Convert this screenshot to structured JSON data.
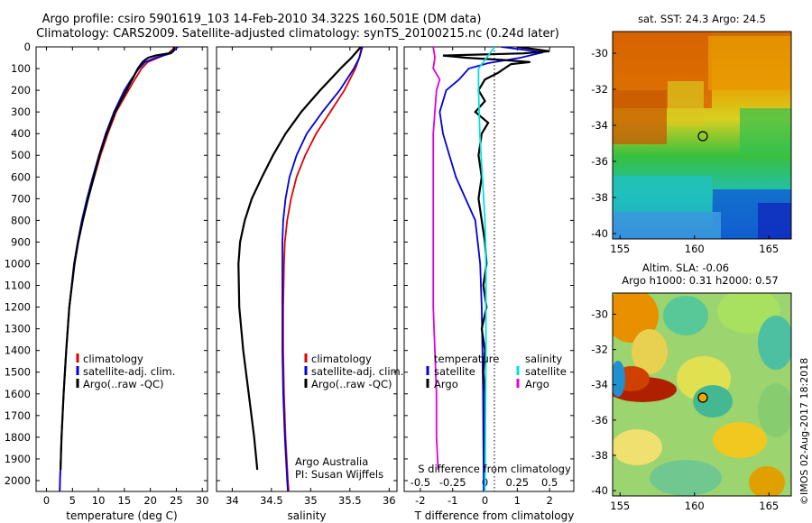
{
  "header": {
    "title_line1": "Argo profile: csiro 5901619_103 14-Feb-2010 34.322S 160.501E (DM data)",
    "title_line2": "Climatology: CARS2009. Satellite-adjusted climatology: synTS_20100215.nc (0.24d later)"
  },
  "colors": {
    "climatology": "#e00000",
    "satellite": "#0000e0",
    "argo": "#000000",
    "sat_T": "#0000e0",
    "sat_S": "#00e0e0",
    "argo_S": "#e000e0"
  },
  "chart_data": [
    {
      "type": "line",
      "panel": "temperature",
      "xlabel": "temperature (deg C)",
      "xlim": [
        -2,
        31
      ],
      "ylim": [
        2050,
        0
      ],
      "xticks": [
        0,
        5,
        10,
        15,
        20,
        25,
        30
      ],
      "yticks": [
        0,
        100,
        200,
        300,
        400,
        500,
        600,
        700,
        800,
        900,
        1000,
        1100,
        1200,
        1300,
        1400,
        1500,
        1600,
        1700,
        1800,
        1900,
        2000
      ],
      "legend": [
        "climatology",
        "satellite-adj. clim.",
        "Argo(..raw -QC)"
      ],
      "series": [
        {
          "name": "climatology",
          "color": "#e00000",
          "depth": [
            0,
            30,
            50,
            70,
            100,
            150,
            200,
            300,
            400,
            500,
            600,
            700,
            800,
            900,
            1000,
            1200,
            1400,
            1600,
            1800,
            2000,
            2050
          ],
          "values": [
            24.8,
            23.5,
            21.5,
            19.5,
            18.3,
            17.0,
            15.8,
            13.4,
            11.8,
            10.4,
            9.2,
            8.0,
            7.0,
            6.1,
            5.4,
            4.4,
            3.8,
            3.3,
            2.9,
            2.6,
            2.55
          ]
        },
        {
          "name": "satellite-adj. clim.",
          "color": "#0000e0",
          "depth": [
            0,
            30,
            50,
            70,
            100,
            150,
            200,
            300,
            400,
            500,
            600,
            700,
            800,
            900,
            1000,
            1200,
            1400,
            1600,
            1800,
            2000,
            2050
          ],
          "values": [
            25.3,
            24.0,
            21.0,
            19.0,
            17.8,
            16.3,
            15.0,
            13.0,
            11.4,
            10.1,
            8.9,
            7.8,
            6.8,
            6.0,
            5.3,
            4.4,
            3.8,
            3.3,
            2.9,
            2.6,
            2.55
          ]
        },
        {
          "name": "Argo(..raw -QC)",
          "color": "#000000",
          "depth": [
            0,
            20,
            30,
            40,
            50,
            60,
            70,
            100,
            150,
            200,
            300,
            400,
            500,
            600,
            700,
            800,
            900,
            1000,
            1200,
            1400,
            1600,
            1800,
            1950
          ],
          "values": [
            24.6,
            24.4,
            23.5,
            21.0,
            19.6,
            19.0,
            18.5,
            17.6,
            16.5,
            15.4,
            13.2,
            11.6,
            10.2,
            9.1,
            8.0,
            7.0,
            6.1,
            5.4,
            4.4,
            3.8,
            3.3,
            2.9,
            2.7
          ]
        }
      ]
    },
    {
      "type": "line",
      "panel": "salinity",
      "xlabel": "salinity",
      "xlim": [
        33.8,
        36.1
      ],
      "ylim": [
        2050,
        0
      ],
      "xticks": [
        34,
        34.5,
        35,
        35.5,
        36
      ],
      "legend": [
        "climatology",
        "satellite-adj. clim.",
        "Argo(..raw -QC)"
      ],
      "credit": [
        "Argo Australia",
        "PI: Susan Wijffels"
      ],
      "series": [
        {
          "name": "climatology",
          "color": "#e00000",
          "depth": [
            0,
            50,
            100,
            200,
            300,
            400,
            500,
            600,
            700,
            800,
            900,
            1000,
            1200,
            1400,
            1600,
            1800,
            2000,
            2050
          ],
          "values": [
            35.65,
            35.62,
            35.57,
            35.43,
            35.25,
            35.07,
            34.93,
            34.82,
            34.75,
            34.7,
            34.67,
            34.66,
            34.65,
            34.65,
            34.66,
            34.68,
            34.71,
            34.72
          ]
        },
        {
          "name": "satellite-adj. clim.",
          "color": "#0000e0",
          "depth": [
            0,
            50,
            100,
            200,
            300,
            400,
            500,
            600,
            700,
            800,
            900,
            1000,
            1200,
            1400,
            1600,
            1800,
            2000,
            2050
          ],
          "values": [
            35.66,
            35.62,
            35.55,
            35.37,
            35.15,
            34.95,
            34.82,
            34.73,
            34.68,
            34.65,
            34.64,
            34.64,
            34.64,
            34.64,
            34.65,
            34.67,
            34.7,
            34.71
          ]
        },
        {
          "name": "Argo(..raw -QC)",
          "color": "#000000",
          "depth": [
            0,
            50,
            100,
            150,
            200,
            250,
            300,
            350,
            400,
            500,
            600,
            700,
            800,
            900,
            1000,
            1200,
            1400,
            1600,
            1800,
            1950
          ],
          "values": [
            35.64,
            35.52,
            35.38,
            35.25,
            35.12,
            35.0,
            34.88,
            34.78,
            34.68,
            34.52,
            34.38,
            34.25,
            34.16,
            34.1,
            34.08,
            34.09,
            34.14,
            34.21,
            34.28,
            34.32
          ]
        }
      ]
    },
    {
      "type": "line",
      "panel": "difference",
      "xlabel_bottom": "T difference from climatology",
      "xlabel_top": "S difference from climatology",
      "xlim": [
        -2.5,
        2.75
      ],
      "ylim": [
        2050,
        0
      ],
      "xticks_T": [
        "-2",
        "-1",
        "0",
        "1",
        "2"
      ],
      "xticks_S": [
        "-0.5",
        "-0.25",
        "0",
        "0.25",
        "0.5"
      ],
      "legend_titles": [
        "temperature",
        "salinity"
      ],
      "legend": [
        "satellite",
        "Argo",
        "satellite",
        "Argo"
      ],
      "series": [
        {
          "name": "satellite",
          "group": "temperature",
          "color": "#0000e0",
          "depth": [
            0,
            25,
            50,
            75,
            100,
            150,
            200,
            300,
            400,
            500,
            600,
            700,
            800,
            1000,
            1200,
            1400,
            1600,
            1800,
            2000,
            2050
          ],
          "values": [
            0.5,
            1.8,
            1.1,
            0.1,
            -0.5,
            -0.8,
            -1.2,
            -1.4,
            -1.3,
            -1.1,
            -0.9,
            -0.6,
            -0.3,
            -0.15,
            -0.1,
            -0.08,
            -0.06,
            -0.05,
            -0.04,
            -0.04
          ]
        },
        {
          "name": "Argo",
          "group": "temperature",
          "color": "#000000",
          "depth": [
            0,
            10,
            20,
            30,
            40,
            50,
            60,
            70,
            80,
            100,
            120,
            150,
            200,
            250,
            300,
            350,
            400,
            500,
            600,
            700,
            800,
            900,
            1000,
            1100,
            1200,
            1300,
            1400,
            1500,
            1600,
            1800,
            1950
          ],
          "values": [
            1.0,
            1.5,
            2.0,
            1.2,
            -1.3,
            -0.6,
            0.5,
            1.4,
            0.8,
            0.6,
            0.4,
            0.0,
            -0.2,
            0.0,
            -0.3,
            0.1,
            -0.1,
            -0.2,
            -0.1,
            -0.2,
            -0.1,
            0.0,
            0.05,
            -0.05,
            0.05,
            -0.1,
            0.0,
            -0.05,
            0.0,
            0.0,
            0.0
          ]
        },
        {
          "name": "satellite",
          "group": "salinity",
          "color": "#00e0e0",
          "depth": [
            0,
            50,
            100,
            200,
            300,
            400,
            500,
            600,
            700,
            800,
            900,
            1000,
            1200,
            1400,
            1600,
            1800,
            2000,
            2050
          ],
          "values": [
            0.3,
            0.05,
            -0.2,
            -0.2,
            -0.18,
            -0.16,
            -0.12,
            -0.08,
            -0.04,
            0.0,
            0.02,
            0.03,
            0.03,
            0.03,
            0.02,
            0.01,
            0.0,
            0.0
          ]
        },
        {
          "name": "Argo",
          "group": "salinity",
          "color": "#e000e0",
          "depth": [
            0,
            50,
            100,
            150,
            200,
            300,
            400,
            500,
            600,
            800,
            1000,
            1200,
            1400,
            1600,
            1800,
            1950
          ],
          "values": [
            -1.6,
            -1.55,
            -1.6,
            -1.4,
            -1.5,
            -1.55,
            -1.6,
            -1.6,
            -1.6,
            -1.6,
            -1.6,
            -1.6,
            -1.55,
            -1.5,
            -1.5,
            -1.45
          ]
        }
      ]
    },
    {
      "type": "heatmap",
      "panel": "sst_map",
      "title": "sat. SST: 24.3  Argo: 24.5",
      "xticks": [
        "155",
        "160",
        "165"
      ],
      "yticks": [
        "-30",
        "-32",
        "-34",
        "-36",
        "-38",
        "-40"
      ],
      "xlim": [
        154.5,
        166.5
      ],
      "ylim": [
        -40.3,
        -28.8
      ],
      "profile_marker": {
        "lon": 160.5,
        "lat": -34.3
      }
    },
    {
      "type": "heatmap",
      "panel": "sla_map",
      "title_line1": "Altim. SLA: -0.06",
      "title_line2": "Argo h1000: 0.31  h2000: 0.57",
      "xticks": [
        "155",
        "160",
        "165"
      ],
      "yticks": [
        "-30",
        "-32",
        "-34",
        "-36",
        "-38",
        "-40"
      ],
      "xlim": [
        154.5,
        166.5
      ],
      "ylim": [
        -40.3,
        -28.8
      ],
      "profile_marker": {
        "lon": 160.5,
        "lat": -34.3
      }
    }
  ],
  "footer": {
    "credit_vertical": "©IMOS 02-Aug-2017 18:2018"
  }
}
